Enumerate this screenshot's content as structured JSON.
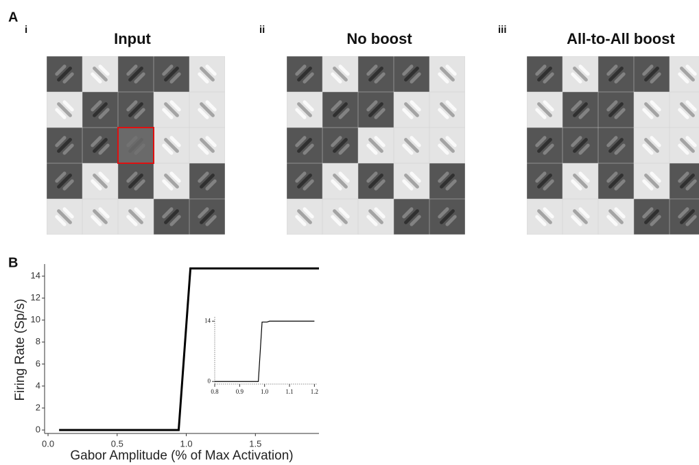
{
  "panel_a": {
    "label": "A",
    "panels": [
      {
        "numeral": "i",
        "title": "Input"
      },
      {
        "numeral": "ii",
        "title": "No boost"
      },
      {
        "numeral": "iii",
        "title": "All-to-All boost"
      }
    ]
  },
  "panel_b": {
    "label": "B"
  },
  "chart_data": [
    {
      "type": "line",
      "x_label": "Gabor Amplitude (% of Max Activation)",
      "y_label": "Firing Rate (Sp/s)",
      "xlim": [
        -0.025,
        1.96
      ],
      "ylim": [
        -0.5,
        15.1
      ],
      "xticks": [
        {
          "value": 0,
          "label": "0.0"
        },
        0.5,
        {
          "value": 1,
          "label": "1.0"
        },
        1.5
      ],
      "yticks": [
        0,
        2,
        4,
        6,
        8,
        10,
        12,
        14
      ],
      "series": [
        {
          "color": "#000000",
          "x": [
            0.08,
            0.945,
            1.03,
            1.96
          ],
          "values": [
            0,
            0,
            14.7,
            14.7
          ]
        }
      ]
    },
    {
      "type": "line",
      "xlim": [
        0.8,
        1.21
      ],
      "ylim": [
        -0.6,
        15
      ],
      "xticks": [
        0.8,
        0.9,
        {
          "value": 1,
          "label": "1.0"
        },
        1.1,
        1.2
      ],
      "yticks": [
        0,
        14
      ],
      "series": [
        {
          "color": "#000000",
          "x": [
            0.8,
            0.975,
            0.99,
            1.01,
            1.02,
            1.2
          ],
          "values": [
            0,
            0,
            13.8,
            13.8,
            14,
            14
          ]
        }
      ]
    }
  ]
}
